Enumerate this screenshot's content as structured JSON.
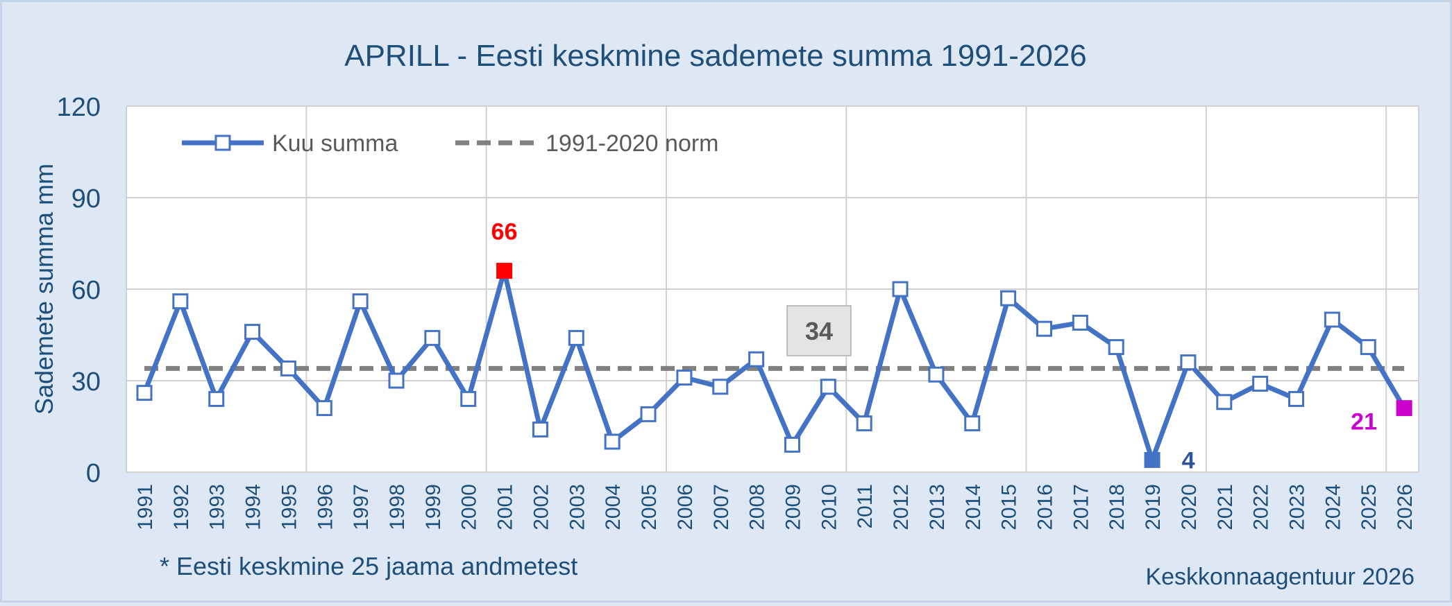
{
  "colors": {
    "background": "#dde8f4",
    "plot_background": "#ffffff",
    "grid": "#d0d0d0",
    "text": "#1f4e79",
    "series": "#4472c4",
    "norm": "#808080",
    "max": "#ff0000",
    "min": "#2e5597",
    "last": "#cc00cc",
    "label_box": "#e3e3e3",
    "label_text": "#595959"
  },
  "chart_data": {
    "type": "line",
    "title": "APRILL - Eesti keskmine sademete summa 1991-2026",
    "xlabel": "",
    "ylabel": "Sademete summa mm",
    "ylim": [
      0,
      120
    ],
    "yticks": [
      "0",
      "30",
      "60",
      "90",
      "120"
    ],
    "grid": true,
    "legend_position": "top-left",
    "categories": [
      "1991",
      "1992",
      "1993",
      "1994",
      "1995",
      "1996",
      "1997",
      "1998",
      "1999",
      "2000",
      "2001",
      "2002",
      "2003",
      "2004",
      "2005",
      "2006",
      "2007",
      "2008",
      "2009",
      "2010",
      "2011",
      "2012",
      "2013",
      "2014",
      "2015",
      "2016",
      "2017",
      "2018",
      "2019",
      "2020",
      "2021",
      "2022",
      "2023",
      "2024",
      "2025",
      "2026"
    ],
    "series": [
      {
        "name": "Kuu summa",
        "style": "line-open-square-markers",
        "values": [
          26,
          56,
          24,
          46,
          34,
          21,
          56,
          30,
          44,
          24,
          66,
          14,
          44,
          10,
          19,
          31,
          28,
          37,
          9,
          28,
          16,
          60,
          32,
          16,
          57,
          47,
          49,
          41,
          4,
          36,
          23,
          29,
          24,
          50,
          41,
          21
        ]
      },
      {
        "name": "1991-2020 norm",
        "style": "dashed",
        "values": [
          34,
          34,
          34,
          34,
          34,
          34,
          34,
          34,
          34,
          34,
          34,
          34,
          34,
          34,
          34,
          34,
          34,
          34,
          34,
          34,
          34,
          34,
          34,
          34,
          34,
          34,
          34,
          34,
          34,
          34,
          34,
          34,
          34,
          34,
          34,
          34
        ]
      }
    ],
    "annotations": [
      {
        "year": "2001",
        "text": "66",
        "kind": "max"
      },
      {
        "year": "2019",
        "text": "4",
        "kind": "min"
      },
      {
        "year": "2026",
        "text": "21",
        "kind": "last"
      },
      {
        "text": "34",
        "kind": "norm-box"
      }
    ]
  },
  "footnote": "* Eesti keskmine 25 jaama andmetest",
  "source": "Keskkonnaagentuur 2026"
}
